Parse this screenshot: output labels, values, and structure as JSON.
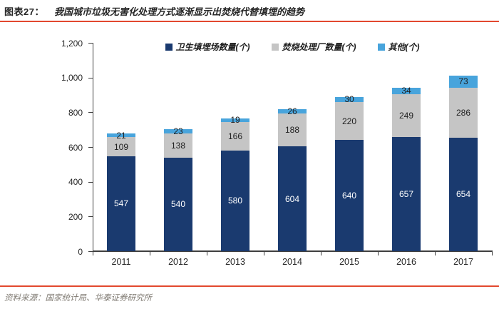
{
  "header": {
    "label": "图表27：",
    "title": "我国城市垃圾无害化处理方式逐渐显示出焚烧代替填埋的趋势"
  },
  "footer": {
    "source": "资料来源：国家统计局、华泰证券研究所"
  },
  "colors": {
    "accent_rule": "#e2482f",
    "axis": "#3f3f3f",
    "landfill": "#1a3a6f",
    "incineration": "#c5c5c5",
    "other": "#48a4dc"
  },
  "chart_data": {
    "type": "bar",
    "stacked": true,
    "title": "我国城市垃圾无害化处理方式逐渐显示出焚烧代替填埋的趋势",
    "categories": [
      "2011",
      "2012",
      "2013",
      "2014",
      "2015",
      "2016",
      "2017"
    ],
    "series": [
      {
        "name": "卫生填埋场数量(个)",
        "color": "#1a3a6f",
        "label_color": "#ffffff",
        "values": [
          547,
          540,
          580,
          604,
          640,
          657,
          654
        ]
      },
      {
        "name": "焚烧处理厂数量(个)",
        "color": "#c5c5c5",
        "label_color": "#1f1f1f",
        "values": [
          109,
          138,
          166,
          188,
          220,
          249,
          286
        ]
      },
      {
        "name": "其他(个)",
        "color": "#48a4dc",
        "label_color": "#1f1f1f",
        "values": [
          21,
          23,
          19,
          26,
          30,
          34,
          73
        ]
      }
    ],
    "ylim": [
      0,
      1200
    ],
    "yticks": [
      "0",
      "200",
      "400",
      "600",
      "800",
      "1,000",
      "1,200"
    ],
    "ytick_interval": 200,
    "xlabel": "",
    "ylabel": "",
    "grid": false,
    "legend_position": "top-center"
  }
}
